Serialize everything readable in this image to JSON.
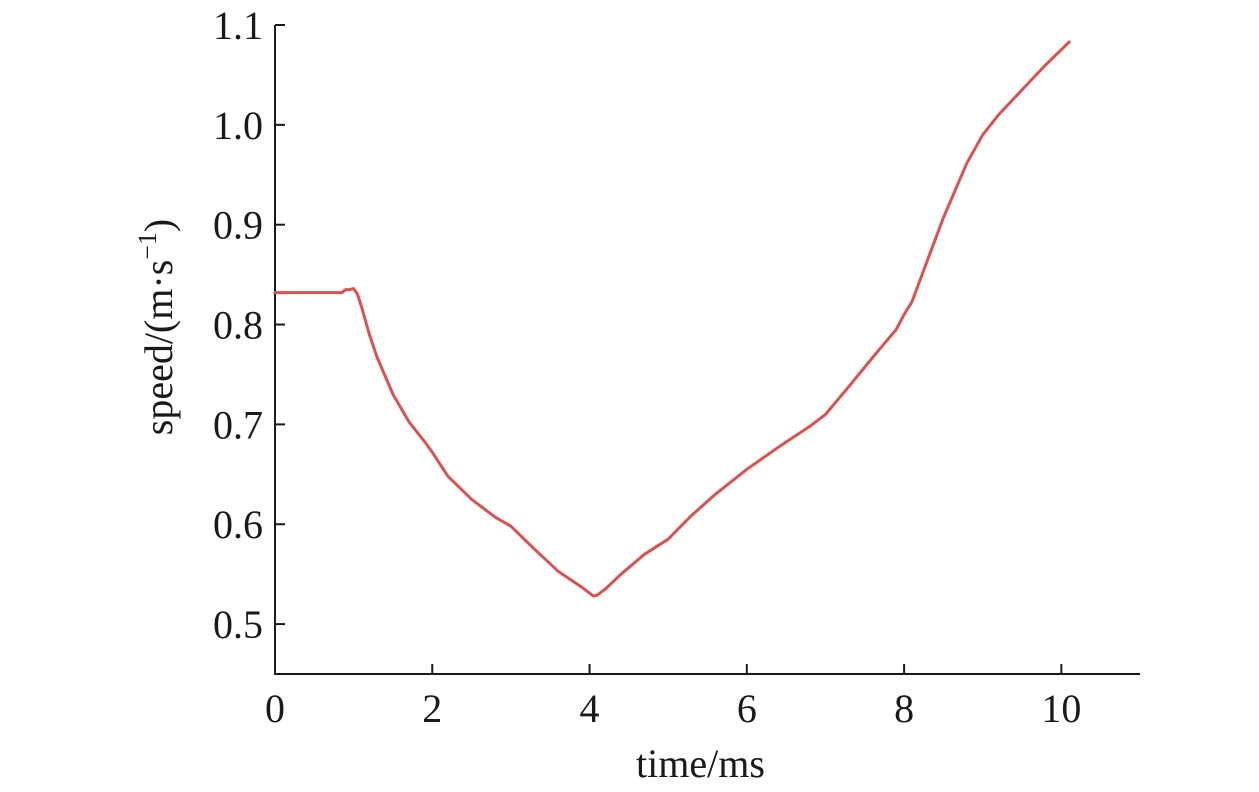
{
  "chart_data": {
    "type": "line",
    "title": "",
    "xlabel": "time/ms",
    "ylabel": "speed/(m·s",
    "ylabel_sup": "−1",
    "ylabel_close": ")",
    "xlim": [
      0,
      11
    ],
    "ylim": [
      0.45,
      1.1
    ],
    "x_ticks": [
      0,
      2,
      4,
      6,
      8,
      10
    ],
    "x_tick_labels": [
      "0",
      "2",
      "4",
      "6",
      "8",
      "10"
    ],
    "y_ticks": [
      0.5,
      0.6,
      0.7,
      0.8,
      0.9,
      1.0,
      1.1
    ],
    "y_tick_labels": [
      "0.5",
      "0.6",
      "0.7",
      "0.8",
      "0.9",
      "1.0",
      "1.1"
    ],
    "grid": false,
    "series": [
      {
        "color": "#d9534f",
        "x": [
          0,
          0.5,
          0.85,
          0.9,
          0.95,
          1.0,
          1.05,
          1.1,
          1.2,
          1.3,
          1.5,
          1.7,
          1.9,
          2.0,
          2.2,
          2.5,
          2.8,
          3.0,
          3.3,
          3.6,
          3.9,
          4.0,
          4.05,
          4.1,
          4.2,
          4.4,
          4.7,
          5.0,
          5.1,
          5.3,
          5.6,
          6.0,
          6.4,
          6.8,
          7.0,
          7.3,
          7.6,
          7.9,
          8.0,
          8.1,
          8.3,
          8.5,
          8.8,
          9.0,
          9.2,
          9.5,
          9.8,
          10.1
        ],
        "y": [
          0.832,
          0.832,
          0.832,
          0.835,
          0.835,
          0.836,
          0.83,
          0.818,
          0.79,
          0.767,
          0.73,
          0.703,
          0.683,
          0.672,
          0.648,
          0.625,
          0.607,
          0.598,
          0.575,
          0.553,
          0.537,
          0.531,
          0.528,
          0.529,
          0.535,
          0.55,
          0.57,
          0.585,
          0.593,
          0.609,
          0.63,
          0.655,
          0.677,
          0.698,
          0.71,
          0.738,
          0.767,
          0.795,
          0.81,
          0.823,
          0.865,
          0.907,
          0.962,
          0.99,
          1.01,
          1.035,
          1.06,
          1.083
        ]
      }
    ]
  }
}
